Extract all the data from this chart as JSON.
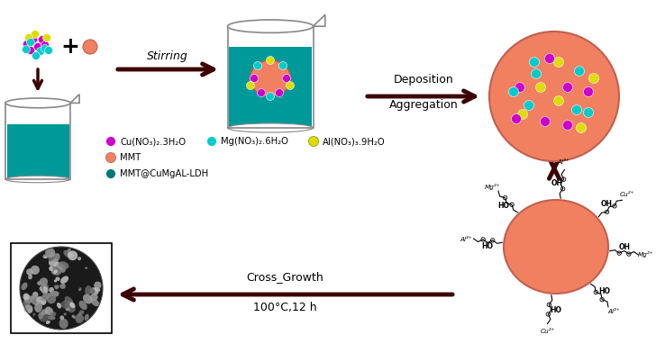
{
  "bg_color": "#ffffff",
  "arrow_color": "#3d0000",
  "teal_color": "#009999",
  "salmon_color": "#F08060",
  "magenta_color": "#CC00CC",
  "cyan_color": "#00CCCC",
  "yellow_color": "#DDDD00",
  "dark_teal_dot": "#007777",
  "legend_items": [
    {
      "label": "Cu(NO₃)₂.3H₂O",
      "color": "#CC00CC"
    },
    {
      "label": "Mg(NO₃)₂.6H₂O",
      "color": "#00CCCC"
    },
    {
      "label": "Al(NO₃)₃.9H₂O",
      "color": "#DDDD00"
    },
    {
      "label": "MMT",
      "color": "#F08060"
    },
    {
      "label": "MMT@CuMgAL-LDH",
      "color": "#007777"
    }
  ],
  "stirring_label": "Stirring",
  "deposition_label": "Deposition",
  "aggregation_label": "Aggregation",
  "cross_growth_label": "Cross_Growth",
  "temp_label": "100°C,12 h",
  "dot_cluster": [
    [
      -5,
      8,
      "#CC00CC"
    ],
    [
      5,
      8,
      "#CC00CC"
    ],
    [
      -12,
      3,
      "#CC00CC"
    ],
    [
      0,
      0,
      "#CC00CC"
    ],
    [
      8,
      2,
      "#CC00CC"
    ],
    [
      -8,
      -4,
      "#CC00CC"
    ],
    [
      -3,
      14,
      "#DDDD00"
    ],
    [
      10,
      10,
      "#DDDD00"
    ],
    [
      -10,
      10,
      "#DDDD00"
    ],
    [
      3,
      -5,
      "#00CCCC"
    ],
    [
      -8,
      5,
      "#00CCCC"
    ],
    [
      8,
      -2,
      "#00CCCC"
    ],
    [
      -2,
      -10,
      "#00CCCC"
    ],
    [
      12,
      -4,
      "#00CCCC"
    ],
    [
      -13,
      -3,
      "#00CCCC"
    ]
  ],
  "beaker_center_dots": [
    [
      -18,
      0,
      "#CC00CC"
    ],
    [
      18,
      0,
      "#CC00CC"
    ],
    [
      -10,
      -16,
      "#CC00CC"
    ],
    [
      10,
      -16,
      "#CC00CC"
    ],
    [
      -22,
      -8,
      "#DDDD00"
    ],
    [
      22,
      -8,
      "#DDDD00"
    ],
    [
      0,
      20,
      "#DDDD00"
    ],
    [
      -14,
      14,
      "#00CCCC"
    ],
    [
      14,
      14,
      "#00CCCC"
    ],
    [
      0,
      -20,
      "#00CCCC"
    ]
  ],
  "big_circle_dots": [
    [
      -20,
      25,
      "#00CCCC"
    ],
    [
      5,
      38,
      "#DDDD00"
    ],
    [
      28,
      28,
      "#00CCCC"
    ],
    [
      -38,
      10,
      "#CC00CC"
    ],
    [
      -15,
      10,
      "#DDDD00"
    ],
    [
      15,
      10,
      "#CC00CC"
    ],
    [
      38,
      5,
      "#CC00CC"
    ],
    [
      -28,
      -10,
      "#00CCCC"
    ],
    [
      5,
      -5,
      "#DDDD00"
    ],
    [
      25,
      -15,
      "#00CCCC"
    ],
    [
      -10,
      -28,
      "#CC00CC"
    ],
    [
      15,
      -32,
      "#CC00CC"
    ],
    [
      -35,
      -20,
      "#DDDD00"
    ],
    [
      38,
      -18,
      "#00CCCC"
    ],
    [
      -22,
      38,
      "#00CCCC"
    ],
    [
      30,
      -35,
      "#DDDD00"
    ],
    [
      -5,
      42,
      "#CC00CC"
    ],
    [
      -45,
      5,
      "#00CCCC"
    ],
    [
      44,
      20,
      "#DDDD00"
    ],
    [
      -42,
      -25,
      "#CC00CC"
    ]
  ]
}
